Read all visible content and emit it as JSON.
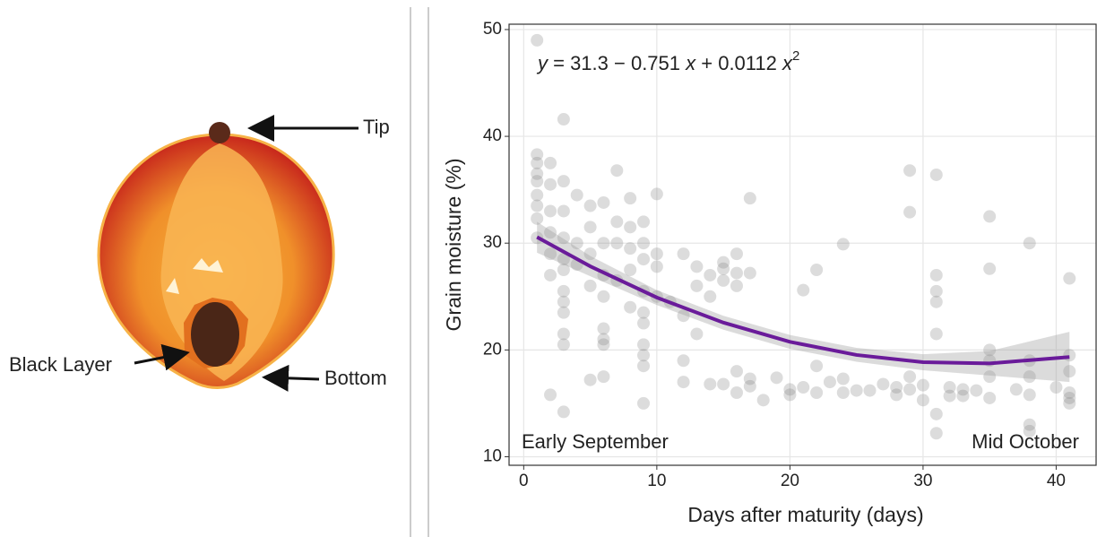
{
  "diagram": {
    "labels": [
      "Tip",
      "Black Layer",
      "Bottom"
    ]
  },
  "chart_data": {
    "type": "scatter",
    "annotations": {
      "equation": [
        "y",
        " = 31.3 − 0.751 ",
        "x",
        " + 0.0112 ",
        "x",
        "2"
      ],
      "start": "Early September",
      "end": "Mid October"
    },
    "x_label": "Days after maturity (days)",
    "y_label": "Grain moisture (%)",
    "xlim": [
      -1.1,
      43
    ],
    "ylim": [
      9.2,
      50.5
    ],
    "xticks": [
      0,
      10,
      20,
      30,
      40
    ],
    "yticks": [
      10,
      20,
      30,
      40,
      50
    ],
    "grid": true,
    "series": [
      {
        "color": "#808080",
        "x": [
          1,
          1,
          1,
          1,
          1,
          1,
          1,
          1,
          1,
          2,
          2,
          2,
          2,
          2,
          2,
          2,
          3,
          3,
          3,
          3,
          3,
          3,
          3,
          3,
          3,
          3,
          3,
          3,
          4,
          4,
          4,
          5,
          5,
          5,
          5,
          5,
          6,
          6,
          6,
          6,
          6,
          6,
          6,
          6,
          7,
          7,
          7,
          7,
          8,
          8,
          8,
          8,
          8,
          9,
          9,
          9,
          9,
          9,
          9,
          9,
          9,
          9,
          9,
          10,
          10,
          10,
          10,
          11,
          12,
          12,
          12,
          12,
          13,
          13,
          13,
          14,
          14,
          14,
          15,
          15,
          15,
          15,
          16,
          16,
          16,
          16,
          16,
          17,
          17,
          17,
          17,
          18,
          19,
          20,
          20,
          21,
          21,
          22,
          22,
          22,
          23,
          24,
          24,
          24,
          25,
          26,
          27,
          28,
          28,
          29,
          29,
          29,
          29,
          30,
          30,
          31,
          31,
          31,
          31,
          31,
          31,
          31,
          32,
          32,
          33,
          33,
          34,
          35,
          35,
          35,
          35,
          35,
          35,
          37,
          38,
          38,
          38,
          38,
          38,
          38,
          40,
          41,
          41,
          41,
          41,
          41,
          41
        ],
        "values": [
          49,
          38.3,
          37.5,
          36.5,
          35.8,
          34.5,
          33.5,
          32.3,
          30.5,
          37.5,
          35.5,
          33,
          31,
          29,
          27,
          15.8,
          41.6,
          35.8,
          33,
          30.5,
          28.5,
          27.5,
          25.5,
          24.5,
          23.5,
          21.5,
          20.5,
          14.2,
          34.5,
          30,
          28,
          33.5,
          31.5,
          29,
          26,
          17.2,
          33.8,
          30,
          27,
          25,
          22,
          21,
          20.5,
          17.5,
          36.8,
          32,
          30,
          26.5,
          34.2,
          31.5,
          29.5,
          27.5,
          24,
          32,
          30,
          28.5,
          25.5,
          23.5,
          22.5,
          20.5,
          19.5,
          18.5,
          15,
          34.6,
          29,
          27.8,
          25,
          24.5,
          29,
          23.2,
          19,
          17,
          27.8,
          26,
          21.5,
          27,
          25,
          16.8,
          28.2,
          27.6,
          26.5,
          16.8,
          29,
          27.2,
          26,
          18,
          16,
          34.2,
          27.2,
          17.3,
          16.6,
          15.3,
          17.4,
          16.3,
          15.8,
          25.6,
          16.5,
          27.5,
          18.5,
          16,
          17,
          29.9,
          17.3,
          16,
          16.2,
          16.2,
          16.8,
          15.8,
          16.5,
          36.8,
          32.9,
          17.5,
          16.3,
          16.7,
          15.3,
          36.4,
          27,
          25.5,
          24.5,
          21.5,
          14,
          12.2,
          16.5,
          15.7,
          15.7,
          16.3,
          16.2,
          32.5,
          27.6,
          20,
          19,
          17.5,
          15.5,
          16.3,
          30,
          19,
          17.5,
          15.8,
          13,
          12.4,
          16.5,
          26.7,
          19.5,
          18,
          16,
          15.5,
          15
        ]
      },
      {
        "type": "line",
        "color": "#6a1b9a",
        "x": [
          1,
          5,
          10,
          15,
          20,
          25,
          30,
          35,
          41
        ],
        "values": [
          30.56,
          27.83,
          24.91,
          22.56,
          20.76,
          19.53,
          18.85,
          18.74,
          19.34
        ],
        "band_lower": [
          29.1,
          26.9,
          24.2,
          21.9,
          20.1,
          18.9,
          18.1,
          17.6,
          17.0
        ],
        "band_upper": [
          32.0,
          28.8,
          25.6,
          23.2,
          21.4,
          20.2,
          19.6,
          19.9,
          21.7
        ]
      }
    ]
  }
}
